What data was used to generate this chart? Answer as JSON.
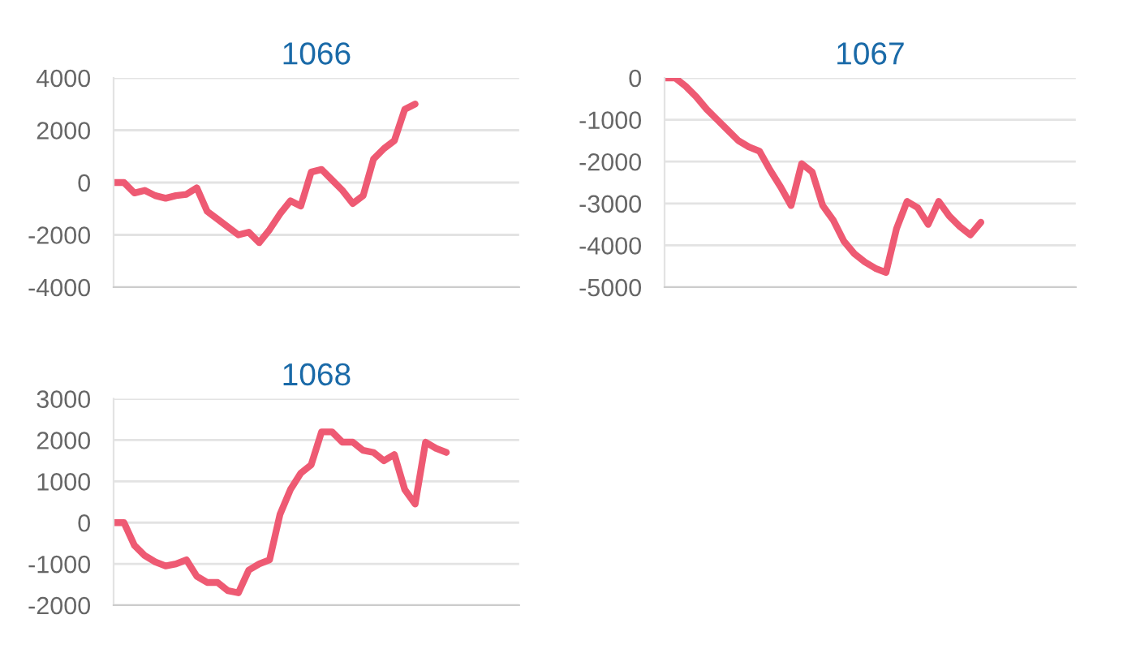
{
  "chart_data": [
    {
      "type": "line",
      "title": "1066",
      "categories": [
        null,
        null,
        null,
        null,
        null,
        null,
        null,
        null,
        null,
        null,
        null,
        null,
        null,
        null,
        null,
        null,
        null,
        null,
        null,
        null,
        null,
        null,
        null,
        null,
        null,
        null,
        null,
        null,
        null,
        null,
        null,
        null,
        null,
        null,
        null,
        null,
        null,
        null,
        null,
        null
      ],
      "ylim": [
        -4000,
        4000
      ],
      "yticks": [
        -4000,
        -2000,
        0,
        2000,
        4000
      ],
      "grid": "y",
      "marker": "none",
      "line_style": "solid",
      "tick_labels": "y",
      "series": [
        {
          "color": "#ee5a73",
          "values": [
            0,
            0,
            -400,
            -300,
            -500,
            -600,
            -500,
            -450,
            -200,
            -1100,
            -1400,
            -1700,
            -2000,
            -1900,
            -2300,
            -1800,
            -1200,
            -700,
            -900,
            400,
            500,
            100,
            -300,
            -800,
            -500,
            900,
            1300,
            1600,
            2800,
            3000,
            null,
            null,
            null,
            null,
            null,
            null,
            null,
            null,
            null,
            null
          ]
        }
      ]
    },
    {
      "type": "line",
      "title": "1067",
      "categories": [
        null,
        null,
        null,
        null,
        null,
        null,
        null,
        null,
        null,
        null,
        null,
        null,
        null,
        null,
        null,
        null,
        null,
        null,
        null,
        null,
        null,
        null,
        null,
        null,
        null,
        null,
        null,
        null,
        null,
        null,
        null,
        null,
        null,
        null,
        null,
        null,
        null,
        null,
        null,
        null
      ],
      "ylim": [
        -5000,
        0
      ],
      "yticks": [
        -5000,
        -4000,
        -3000,
        -2000,
        -1000,
        0
      ],
      "grid": "y",
      "marker": "none",
      "line_style": "solid",
      "tick_labels": "y",
      "series": [
        {
          "color": "#ee5a73",
          "values": [
            0,
            0,
            -200,
            -450,
            -750,
            -1000,
            -1250,
            -1500,
            -1650,
            -1750,
            -2200,
            -2600,
            -3050,
            -2050,
            -2250,
            -3050,
            -3400,
            -3900,
            -4200,
            -4400,
            -4550,
            -4650,
            -3600,
            -2950,
            -3100,
            -3500,
            -2950,
            -3300,
            -3550,
            -3750,
            -3450,
            null,
            null,
            null,
            null,
            null,
            null,
            null,
            null,
            null
          ]
        }
      ]
    },
    {
      "type": "line",
      "title": "1068",
      "categories": [
        null,
        null,
        null,
        null,
        null,
        null,
        null,
        null,
        null,
        null,
        null,
        null,
        null,
        null,
        null,
        null,
        null,
        null,
        null,
        null,
        null,
        null,
        null,
        null,
        null,
        null,
        null,
        null,
        null,
        null,
        null,
        null,
        null,
        null,
        null,
        null,
        null,
        null,
        null,
        null
      ],
      "ylim": [
        -2000,
        3000
      ],
      "yticks": [
        -2000,
        -1000,
        0,
        1000,
        2000,
        3000
      ],
      "grid": "y",
      "marker": "none",
      "line_style": "solid",
      "tick_labels": "y",
      "series": [
        {
          "color": "#ee5a73",
          "values": [
            0,
            0,
            -550,
            -800,
            -950,
            -1050,
            -1000,
            -900,
            -1300,
            -1450,
            -1450,
            -1650,
            -1700,
            -1150,
            -1000,
            -900,
            200,
            800,
            1200,
            1400,
            2200,
            2200,
            1950,
            1950,
            1750,
            1700,
            1500,
            1650,
            800,
            450,
            1950,
            1800,
            1700,
            null,
            null,
            null,
            null,
            null,
            null,
            null
          ]
        }
      ]
    }
  ]
}
